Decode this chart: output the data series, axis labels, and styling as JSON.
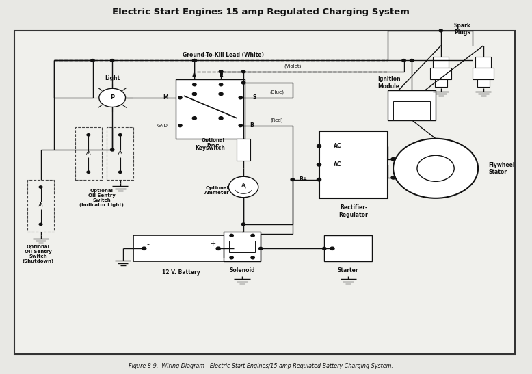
{
  "title": "Electric Start Engines 15 amp Regulated Charging System",
  "caption": "Figure 8-9.  Wiring Diagram - Electric Start Engines/15 amp Regulated Battery Charging System.",
  "bg_color": "#e8e8e4",
  "inner_bg": "#f0f0ec",
  "border_color": "#111111",
  "line_color": "#111111",
  "text_color": "#111111",
  "fig_width": 7.78,
  "fig_height": 5.47,
  "labels": {
    "light": "Light",
    "optional_oil_sentry_indicator": "Optional\nOil Sentry\nSwitch\n(Indicator Light)",
    "optional_oil_sentry_shutdown": "Optional\nOil Sentry\nSwitch\n(Shutdown)",
    "battery": "12 V. Battery",
    "keyswitch": "Keyswitch",
    "optional_fuse": "Optional\nFuse",
    "optional_ammeter": "Optional\nAmmeter",
    "solenoid": "Solenoid",
    "starter": "Starter",
    "rectifier": "Rectifier-\nRegulator",
    "flywheel": "Flywheel\nStator",
    "ignition": "Ignition\nModule",
    "spark": "Spark\nPlugs",
    "ground_kill": "Ground-To-Kill Lead (White)",
    "violet": "(Violet)",
    "blue": "(Blue)",
    "red": "(Red)",
    "bp": "B+",
    "ac1": "AC",
    "ac2": "AC",
    "gnd": "GND",
    "A": "A",
    "R": "R",
    "M": "M",
    "S": "S",
    "B": "B"
  }
}
